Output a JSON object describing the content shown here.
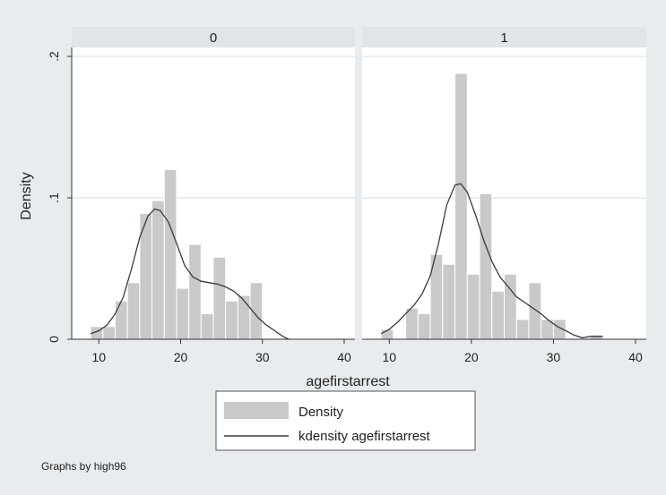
{
  "chart_data": {
    "type": "histogram_with_kdensity",
    "y_axis_title": "Density",
    "x_axis_title": "agefirstarrest",
    "note": "Graphs by high96",
    "xlim": [
      8,
      40
    ],
    "ylim": [
      0,
      0.2
    ],
    "x_ticks": [
      {
        "value": 10,
        "label": "10"
      },
      {
        "value": 20,
        "label": "20"
      },
      {
        "value": 30,
        "label": "30"
      },
      {
        "value": 40,
        "label": "40"
      }
    ],
    "y_ticks": [
      {
        "value": 0,
        "label": "0"
      },
      {
        "value": 0.1,
        "label": ".1"
      },
      {
        "value": 0.2,
        "label": ".2"
      }
    ],
    "legend": {
      "position": "bottom-center",
      "entries": [
        {
          "label": "Density",
          "kind": "bar"
        },
        {
          "label": "kdensity agefirstarrest",
          "kind": "line"
        }
      ]
    },
    "colors": {
      "background": "#e8ecef",
      "plot_area": "#ffffff",
      "bar_fill": "#c8c9cb",
      "bar_edge": "#ffffff",
      "line": "#3a3a3a",
      "strip": "#e1e4e8",
      "grid": "#d4dbe0"
    },
    "panels": [
      {
        "title": "0",
        "bins": [
          {
            "x0": 9,
            "x1": 10.5,
            "density": 0.009
          },
          {
            "x0": 10.5,
            "x1": 12,
            "density": 0.009
          },
          {
            "x0": 12,
            "x1": 13.5,
            "density": 0.027
          },
          {
            "x0": 13.5,
            "x1": 15,
            "density": 0.04
          },
          {
            "x0": 15,
            "x1": 16.5,
            "density": 0.089
          },
          {
            "x0": 16.5,
            "x1": 18,
            "density": 0.098
          },
          {
            "x0": 18,
            "x1": 19.5,
            "density": 0.12
          },
          {
            "x0": 19.5,
            "x1": 21,
            "density": 0.036
          },
          {
            "x0": 21,
            "x1": 22.5,
            "density": 0.067
          },
          {
            "x0": 22.5,
            "x1": 24,
            "density": 0.018
          },
          {
            "x0": 24,
            "x1": 25.5,
            "density": 0.058
          },
          {
            "x0": 25.5,
            "x1": 27,
            "density": 0.027
          },
          {
            "x0": 27,
            "x1": 28.5,
            "density": 0.031
          },
          {
            "x0": 28.5,
            "x1": 30,
            "density": 0.04
          }
        ],
        "kdensity": [
          [
            9,
            0.004
          ],
          [
            10,
            0.006
          ],
          [
            11,
            0.01
          ],
          [
            12,
            0.018
          ],
          [
            13,
            0.03
          ],
          [
            14,
            0.05
          ],
          [
            15,
            0.072
          ],
          [
            16,
            0.087
          ],
          [
            16.8,
            0.092
          ],
          [
            17.5,
            0.091
          ],
          [
            18.5,
            0.083
          ],
          [
            19.5,
            0.068
          ],
          [
            20.5,
            0.052
          ],
          [
            21.5,
            0.044
          ],
          [
            22.5,
            0.041
          ],
          [
            23.5,
            0.04
          ],
          [
            24.5,
            0.039
          ],
          [
            25.5,
            0.037
          ],
          [
            26.5,
            0.034
          ],
          [
            27.5,
            0.029
          ],
          [
            28.5,
            0.022
          ],
          [
            29.5,
            0.015
          ],
          [
            30.5,
            0.01
          ],
          [
            31.5,
            0.006
          ],
          [
            32.5,
            0.002
          ],
          [
            33.2,
            0.0
          ]
        ]
      },
      {
        "title": "1",
        "bins": [
          {
            "x0": 9,
            "x1": 10.5,
            "density": 0.007
          },
          {
            "x0": 12,
            "x1": 13.5,
            "density": 0.022
          },
          {
            "x0": 13.5,
            "x1": 15,
            "density": 0.018
          },
          {
            "x0": 15,
            "x1": 16.5,
            "density": 0.06
          },
          {
            "x0": 16.5,
            "x1": 18,
            "density": 0.053
          },
          {
            "x0": 18,
            "x1": 19.5,
            "density": 0.188
          },
          {
            "x0": 19.5,
            "x1": 21,
            "density": 0.046
          },
          {
            "x0": 21,
            "x1": 22.5,
            "density": 0.103
          },
          {
            "x0": 22.5,
            "x1": 24,
            "density": 0.034
          },
          {
            "x0": 24,
            "x1": 25.5,
            "density": 0.046
          },
          {
            "x0": 25.5,
            "x1": 27,
            "density": 0.014
          },
          {
            "x0": 27,
            "x1": 28.5,
            "density": 0.04
          },
          {
            "x0": 28.5,
            "x1": 30,
            "density": 0.014
          },
          {
            "x0": 30,
            "x1": 31.5,
            "density": 0.014
          },
          {
            "x0": 34.5,
            "x1": 36,
            "density": 0.003
          }
        ],
        "kdensity": [
          [
            9,
            0.004
          ],
          [
            10,
            0.007
          ],
          [
            11,
            0.012
          ],
          [
            12,
            0.018
          ],
          [
            13,
            0.024
          ],
          [
            14,
            0.032
          ],
          [
            15,
            0.045
          ],
          [
            16,
            0.068
          ],
          [
            17,
            0.095
          ],
          [
            18,
            0.109
          ],
          [
            18.7,
            0.11
          ],
          [
            19.5,
            0.104
          ],
          [
            20.5,
            0.088
          ],
          [
            21.5,
            0.07
          ],
          [
            22.5,
            0.055
          ],
          [
            23.5,
            0.044
          ],
          [
            24.5,
            0.037
          ],
          [
            25.5,
            0.03
          ],
          [
            26.5,
            0.026
          ],
          [
            27.5,
            0.022
          ],
          [
            28.5,
            0.018
          ],
          [
            29.5,
            0.013
          ],
          [
            30.5,
            0.009
          ],
          [
            31.5,
            0.006
          ],
          [
            32.5,
            0.003
          ],
          [
            33.5,
            0.001
          ],
          [
            34.5,
            0.002
          ],
          [
            35.5,
            0.002
          ],
          [
            36,
            0.002
          ]
        ]
      }
    ]
  }
}
